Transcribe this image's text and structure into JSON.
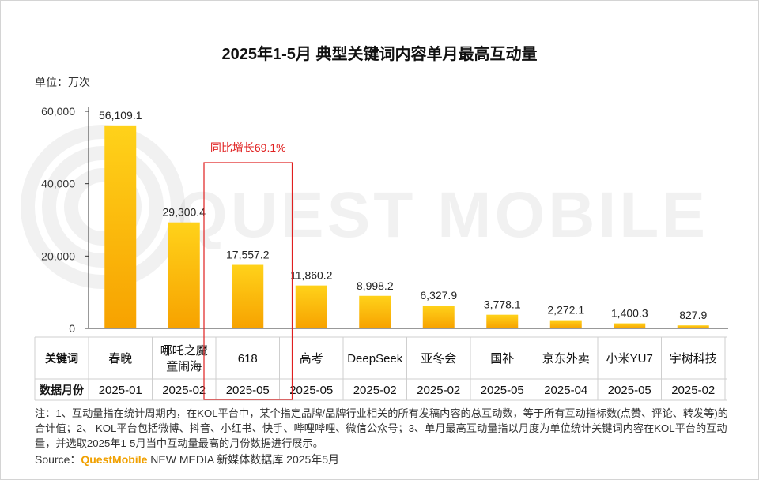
{
  "title": "2025年1-5月 典型关键词内容单月最高互动量",
  "unit_label": "单位：万次",
  "highlight_annotation": "同比增长69.1%",
  "watermark": "QUEST MOBILE",
  "table": {
    "row1_header": "关键词",
    "row2_header": "数据月份"
  },
  "colors": {
    "bar_top": "#ffd21a",
    "bar_bottom": "#f7a200",
    "highlight": "#e02020",
    "brand": "#f0a000"
  },
  "chart_data": {
    "type": "bar",
    "categories": [
      "春晚",
      "哪吒之魔童闹海",
      "618",
      "高考",
      "DeepSeek",
      "亚冬会",
      "国补",
      "京东外卖",
      "小米YU7",
      "宇树科技"
    ],
    "category_lines": [
      [
        "春晚"
      ],
      [
        "哪吒之魔",
        "童闹海"
      ],
      [
        "618"
      ],
      [
        "高考"
      ],
      [
        "DeepSeek"
      ],
      [
        "亚冬会"
      ],
      [
        "国补"
      ],
      [
        "京东外卖"
      ],
      [
        "小米YU7"
      ],
      [
        "宇树科技"
      ]
    ],
    "months": [
      "2025-01",
      "2025-02",
      "2025-05",
      "2025-05",
      "2025-02",
      "2025-02",
      "2025-05",
      "2025-04",
      "2025-05",
      "2025-02"
    ],
    "values": [
      56109.1,
      29300.4,
      17557.2,
      11860.2,
      8998.2,
      6327.9,
      3778.1,
      2272.1,
      1400.3,
      827.9
    ],
    "value_labels": [
      "56,109.1",
      "29,300.4",
      "17,557.2",
      "11,860.2",
      "8,998.2",
      "6,327.9",
      "3,778.1",
      "2,272.1",
      "1,400.3",
      "827.9"
    ],
    "ylim": [
      0,
      60000
    ],
    "yticks": [
      0,
      20000,
      40000,
      60000
    ],
    "ytick_labels": [
      "0",
      "20,000",
      "40,000",
      "60,000"
    ],
    "highlight_index": 2,
    "title": "2025年1-5月 典型关键词内容单月最高互动量",
    "ylabel": "单位：万次"
  },
  "notes": "注：1、互动量指在统计周期内，在KOL平台中，某个指定品牌/品牌行业相关的所有发稿内容的总互动数，等于所有互动指标数(点赞、评论、转发等)的合计值；2、 KOL平台包括微博、抖音、小红书、快手、哔哩哔哩、微信公众号；3、单月最高互动量指以月度为单位统计关键词内容在KOL平台的互动量，并选取2025年1-5月当中互动量最高的月份数据进行展示。",
  "source": {
    "prefix": "Source：",
    "brand": "QuestMobile",
    "suffix": " NEW MEDIA 新媒体数据库 2025年5月"
  }
}
